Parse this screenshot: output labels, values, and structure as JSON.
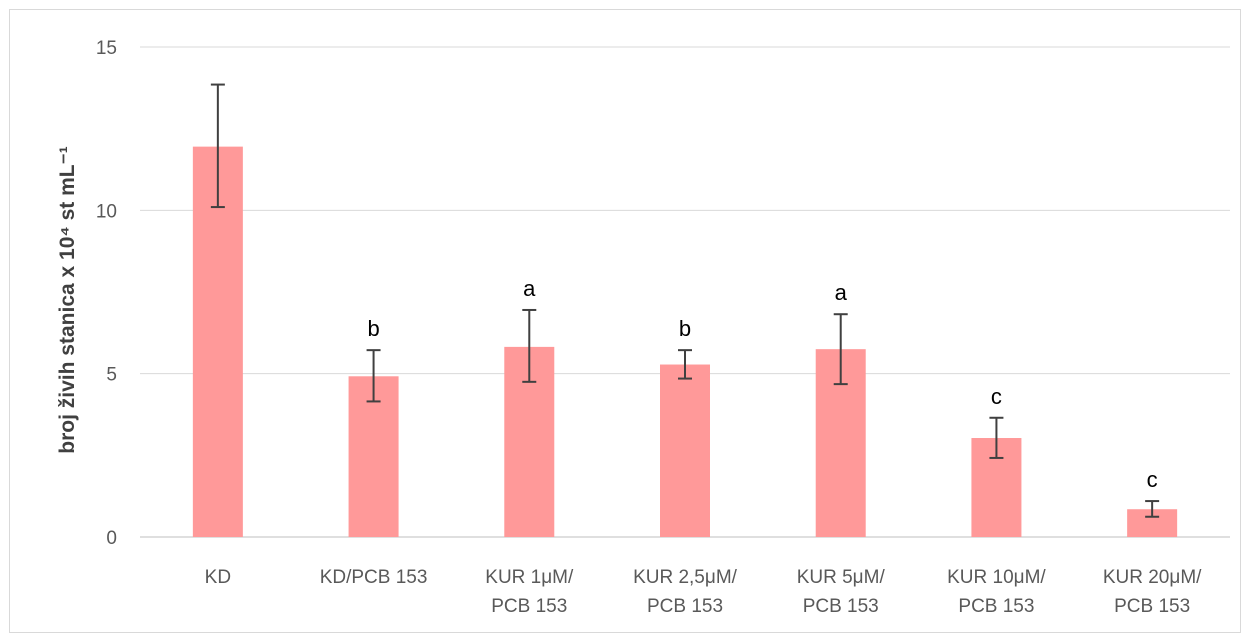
{
  "chart_data": {
    "type": "bar",
    "title": "",
    "xlabel": "",
    "ylabel": "broj živih stanica x 10⁴ st mL⁻¹",
    "ylim": [
      0,
      15
    ],
    "yticks": [
      0,
      5,
      10,
      15
    ],
    "grid": true,
    "legend": "none",
    "bar_color": "#ff9999",
    "error_color": "#404040",
    "categories": [
      [
        "KD"
      ],
      [
        "KD/PCB 153"
      ],
      [
        "KUR 1μM/",
        "PCB 153"
      ],
      [
        "KUR 2,5μM/",
        "PCB 153"
      ],
      [
        "KUR 5μM/",
        "PCB 153"
      ],
      [
        "KUR 10μM/",
        "PCB 153"
      ],
      [
        "KUR 20μM/",
        "PCB 153"
      ]
    ],
    "values": [
      11.95,
      4.92,
      5.82,
      5.28,
      5.75,
      3.03,
      0.85
    ],
    "error_low": [
      10.1,
      4.15,
      4.75,
      4.85,
      4.68,
      2.42,
      0.62
    ],
    "error_high": [
      13.85,
      5.72,
      6.95,
      5.72,
      6.82,
      3.65,
      1.1
    ],
    "significance_labels": [
      "",
      "b",
      "a",
      "b",
      "a",
      "c",
      "c"
    ]
  }
}
